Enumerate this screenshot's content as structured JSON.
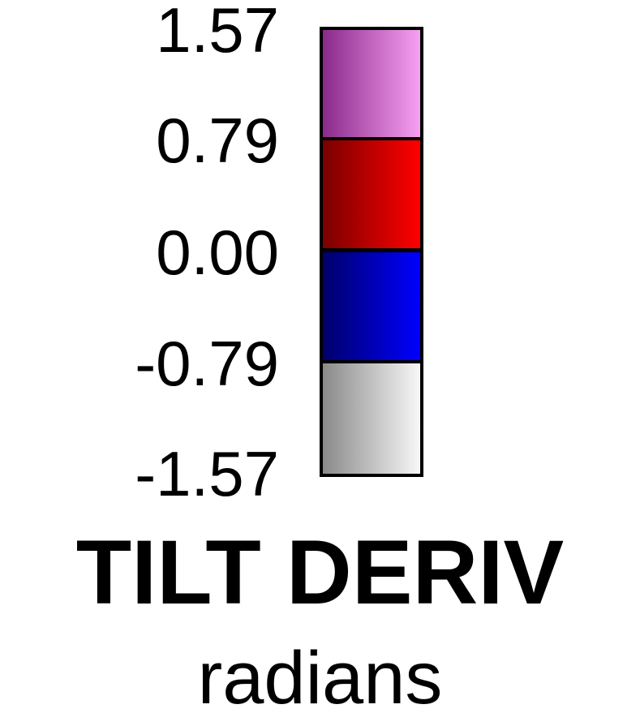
{
  "chart_data": {
    "type": "heatmap",
    "title": "TILT DERIV",
    "unit": "radians",
    "ticks": [
      "1.57",
      "0.79",
      "0.00",
      "-0.79",
      "-1.57"
    ],
    "bins": [
      {
        "from": 0.79,
        "to": 1.57,
        "color_dark": "#8a2a8a",
        "color_light": "#f7a0f2"
      },
      {
        "from": 0.0,
        "to": 0.79,
        "color_dark": "#7a0000",
        "color_light": "#ff0000"
      },
      {
        "from": -0.79,
        "to": 0.0,
        "color_dark": "#00006a",
        "color_light": "#0000ff"
      },
      {
        "from": -1.57,
        "to": -0.79,
        "color_dark": "#8a8a8a",
        "color_light": "#f7f7f7"
      }
    ],
    "range": [
      -1.57,
      1.57
    ],
    "orientation": "vertical"
  }
}
